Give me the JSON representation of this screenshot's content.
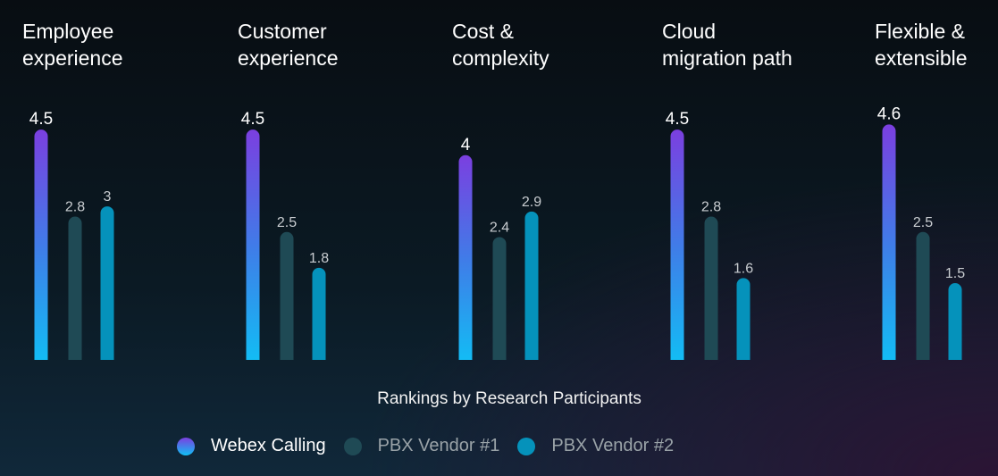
{
  "chart_data": {
    "type": "bar",
    "title": "",
    "xlabel": "Rankings by Research Participants",
    "ylim": [
      0,
      5
    ],
    "grid": false,
    "legend_placement": "bottom",
    "categories": [
      "Employee\nexperience",
      "Customer\nexperience",
      "Cost &\ncomplexity",
      "Cloud\nmigration path",
      "Flexible &\nextensible"
    ],
    "series": [
      {
        "name": "Webex Calling",
        "values": [
          4.5,
          4.5,
          4,
          4.5,
          4.6
        ],
        "color": "#7b3fe0",
        "color_end": "#10c0f5"
      },
      {
        "name": "PBX Vendor #1",
        "values": [
          2.8,
          2.5,
          2.4,
          2.8,
          2.5
        ],
        "color": "#1f4a55"
      },
      {
        "name": "PBX Vendor #2",
        "values": [
          3,
          1.8,
          2.9,
          1.6,
          1.5
        ],
        "color": "#0592bb"
      }
    ]
  }
}
